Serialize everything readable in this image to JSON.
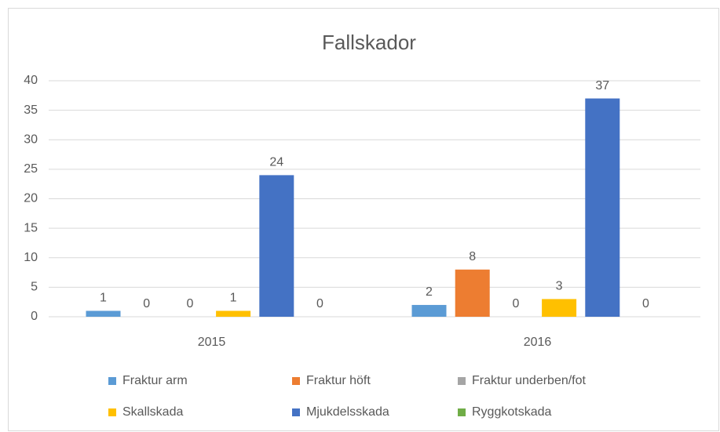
{
  "chart_data": {
    "type": "bar",
    "title": "Fallskador",
    "categories": [
      "2015",
      "2016"
    ],
    "series": [
      {
        "name": "Fraktur arm",
        "color": "#5b9bd5",
        "values": [
          1,
          2
        ]
      },
      {
        "name": "Fraktur höft",
        "color": "#ed7d31",
        "values": [
          0,
          8
        ]
      },
      {
        "name": "Fraktur underben/fot",
        "color": "#a5a5a5",
        "values": [
          0,
          0
        ]
      },
      {
        "name": "Skallskada",
        "color": "#ffc000",
        "values": [
          1,
          3
        ]
      },
      {
        "name": "Mjukdelsskada",
        "color": "#4472c4",
        "values": [
          24,
          37
        ]
      },
      {
        "name": "Ryggkotskada",
        "color": "#70ad47",
        "values": [
          0,
          0
        ]
      }
    ],
    "ylim": [
      0,
      40
    ],
    "yticks": [
      0,
      5,
      10,
      15,
      20,
      25,
      30,
      35,
      40
    ],
    "grid": true,
    "legend": "bottom"
  }
}
